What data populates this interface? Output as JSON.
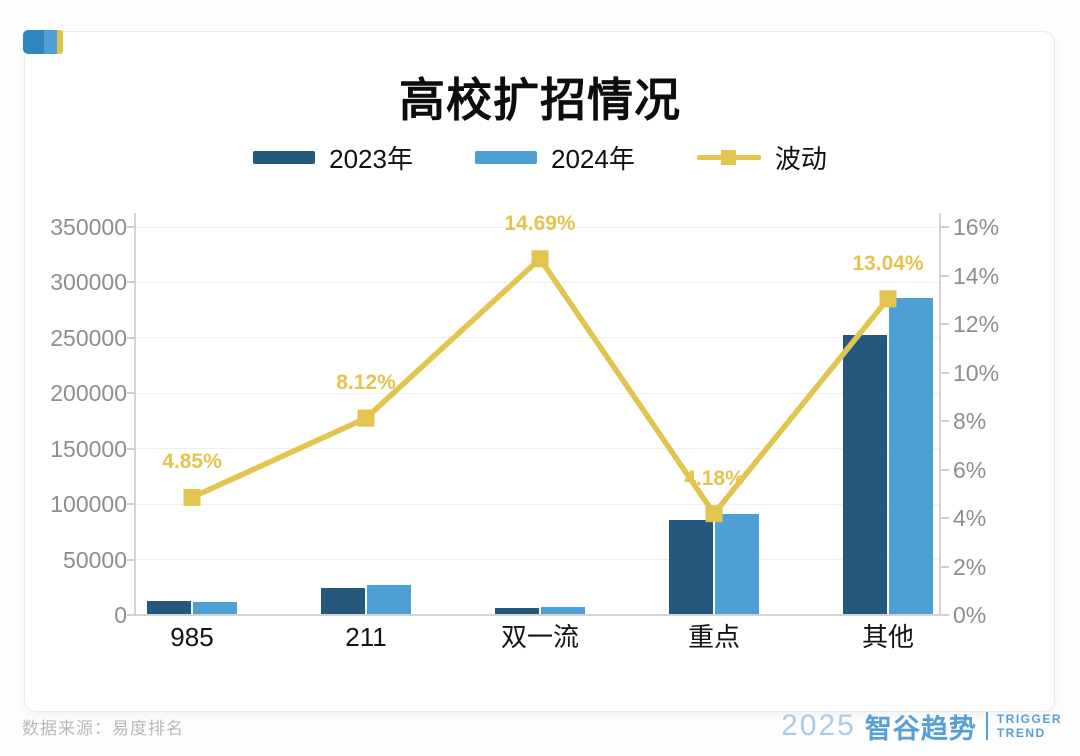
{
  "corner_logo": {
    "block_colors": [
      "#2E86C1",
      "#4D9FD4",
      "#E0C34F"
    ]
  },
  "chart_data": {
    "type": "combo-bar-line",
    "title": "高校扩招情况",
    "categories": [
      "985",
      "211",
      "双一流",
      "重点",
      "其他"
    ],
    "series": [
      {
        "name": "2023年",
        "type": "bar",
        "axis": "left",
        "color": "#24587C",
        "values": [
          12500,
          24500,
          6000,
          86000,
          253000
        ]
      },
      {
        "name": "2024年",
        "type": "bar",
        "axis": "left",
        "color": "#4E9FD5",
        "values": [
          12000,
          27500,
          7000,
          91000,
          286000
        ]
      },
      {
        "name": "波动",
        "type": "line",
        "axis": "right",
        "color": "#E2C44E",
        "values": [
          4.85,
          8.12,
          14.69,
          4.18,
          13.04
        ],
        "point_labels": [
          "4.85%",
          "8.12%",
          "14.69%",
          "4.18%",
          "13.04%"
        ]
      }
    ],
    "y_left": {
      "min": 0,
      "max": 350000,
      "tick_step": 50000,
      "ticks": [
        350000,
        300000,
        250000,
        200000,
        150000,
        100000,
        50000,
        0
      ]
    },
    "y_right": {
      "min": 0,
      "max": 16,
      "tick_step": 2,
      "suffix": "%",
      "ticks": [
        16,
        14,
        12,
        10,
        8,
        6,
        4,
        2,
        0
      ]
    },
    "grid": true,
    "legend_position": "top"
  },
  "footer": {
    "source": "数据来源：易度排名",
    "brand": {
      "year": "2025",
      "name": "智谷趋势",
      "en_line1": "TRIGGER",
      "en_line2": "TREND"
    }
  }
}
